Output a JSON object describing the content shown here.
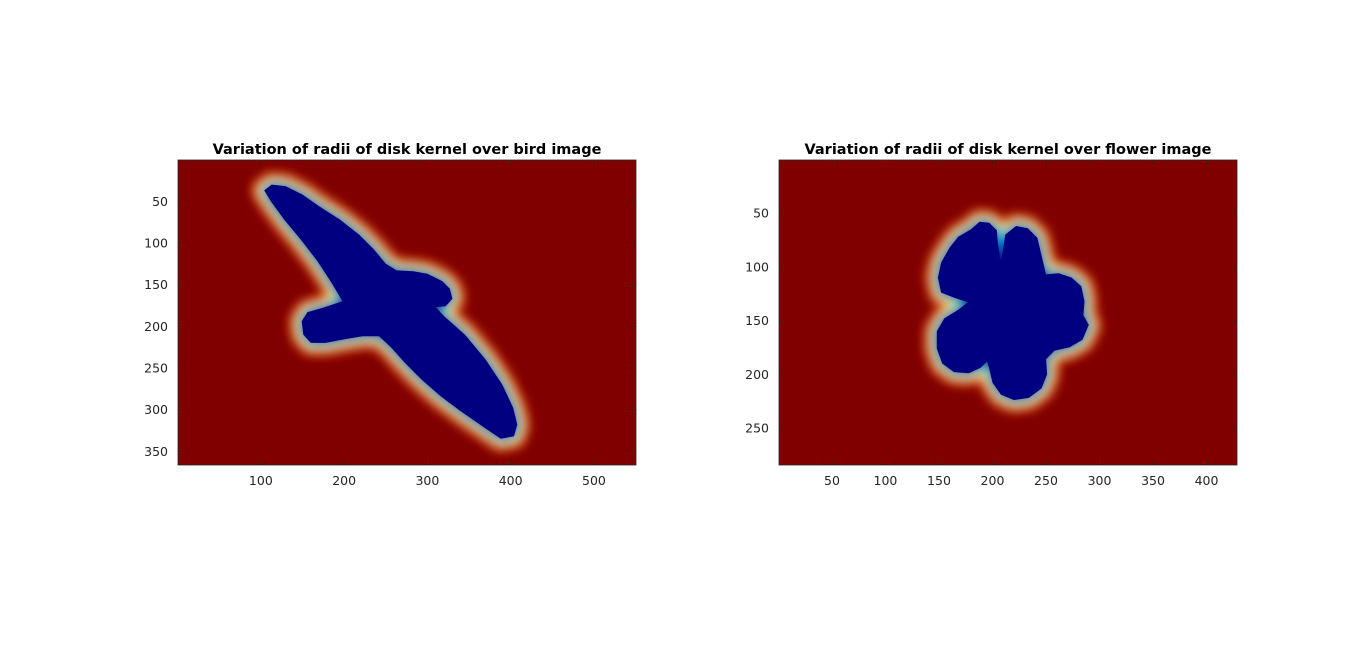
{
  "colors": {
    "background": "#800000",
    "shape_fill": "#000080",
    "colormap": "jet"
  },
  "chart_data": [
    {
      "type": "heatmap",
      "title": "Variation of radii of disk kernel over bird image",
      "xlabel": "",
      "ylabel": "",
      "xlim": [
        0.5,
        550.5
      ],
      "ylim": [
        0.5,
        366.5
      ],
      "y_reversed": true,
      "xticks": [
        100,
        200,
        300,
        400,
        500
      ],
      "yticks": [
        50,
        100,
        150,
        200,
        250,
        300,
        350
      ],
      "colormap": "jet",
      "shape": "bird",
      "outline": [
        [
          113,
          30
        ],
        [
          130,
          32
        ],
        [
          150,
          42
        ],
        [
          170,
          56
        ],
        [
          195,
          72
        ],
        [
          218,
          90
        ],
        [
          236,
          108
        ],
        [
          250,
          125
        ],
        [
          263,
          133
        ],
        [
          283,
          134
        ],
        [
          300,
          137
        ],
        [
          318,
          146
        ],
        [
          327,
          155
        ],
        [
          330,
          167
        ],
        [
          322,
          176
        ],
        [
          310,
          177
        ],
        [
          320,
          188
        ],
        [
          345,
          210
        ],
        [
          370,
          240
        ],
        [
          390,
          270
        ],
        [
          403,
          298
        ],
        [
          408,
          318
        ],
        [
          404,
          332
        ],
        [
          388,
          335
        ],
        [
          366,
          320
        ],
        [
          340,
          302
        ],
        [
          316,
          284
        ],
        [
          293,
          264
        ],
        [
          273,
          244
        ],
        [
          256,
          225
        ],
        [
          242,
          212
        ],
        [
          222,
          212
        ],
        [
          198,
          216
        ],
        [
          178,
          220
        ],
        [
          160,
          220
        ],
        [
          151,
          210
        ],
        [
          149,
          194
        ],
        [
          156,
          183
        ],
        [
          174,
          178
        ],
        [
          198,
          170
        ],
        [
          185,
          148
        ],
        [
          168,
          122
        ],
        [
          148,
          96
        ],
        [
          128,
          72
        ],
        [
          112,
          50
        ],
        [
          104,
          37
        ]
      ]
    },
    {
      "type": "heatmap",
      "title": "Variation of radii of disk kernel over flower image",
      "xlabel": "",
      "ylabel": "",
      "xlim": [
        0.5,
        428.5
      ],
      "ylim": [
        0.5,
        284.5
      ],
      "y_reversed": true,
      "xticks": [
        50,
        100,
        150,
        200,
        250,
        300,
        350,
        400
      ],
      "yticks": [
        50,
        100,
        150,
        200,
        250
      ],
      "colormap": "jet",
      "shape": "flower",
      "outline": [
        [
          180,
          65
        ],
        [
          188,
          58
        ],
        [
          197,
          59
        ],
        [
          204,
          66
        ],
        [
          205,
          78
        ],
        [
          208,
          96
        ],
        [
          212,
          70
        ],
        [
          222,
          62
        ],
        [
          233,
          64
        ],
        [
          242,
          73
        ],
        [
          246,
          90
        ],
        [
          250,
          107
        ],
        [
          262,
          106
        ],
        [
          274,
          110
        ],
        [
          283,
          118
        ],
        [
          286,
          132
        ],
        [
          285,
          145
        ],
        [
          290,
          154
        ],
        [
          284,
          168
        ],
        [
          272,
          175
        ],
        [
          258,
          178
        ],
        [
          250,
          186
        ],
        [
          251,
          200
        ],
        [
          246,
          213
        ],
        [
          234,
          222
        ],
        [
          220,
          224
        ],
        [
          208,
          219
        ],
        [
          200,
          208
        ],
        [
          197,
          195
        ],
        [
          195,
          188
        ],
        [
          189,
          194
        ],
        [
          178,
          199
        ],
        [
          164,
          198
        ],
        [
          153,
          190
        ],
        [
          148,
          176
        ],
        [
          148,
          160
        ],
        [
          155,
          148
        ],
        [
          168,
          140
        ],
        [
          177,
          133
        ],
        [
          165,
          129
        ],
        [
          152,
          124
        ],
        [
          149,
          110
        ],
        [
          152,
          96
        ],
        [
          160,
          82
        ],
        [
          168,
          72
        ]
      ]
    }
  ]
}
